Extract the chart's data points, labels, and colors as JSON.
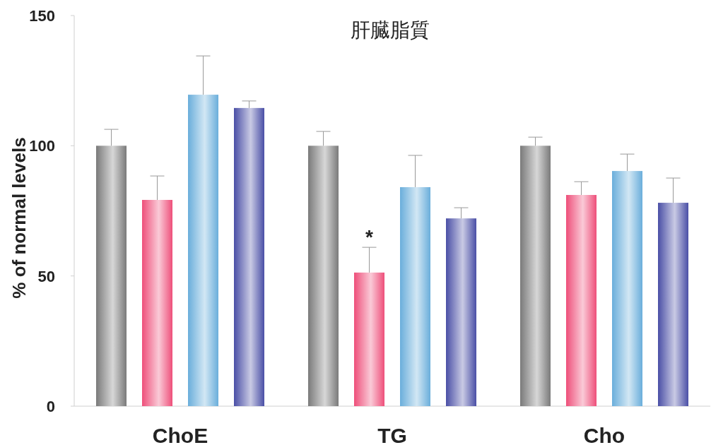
{
  "chart_data": {
    "type": "bar",
    "title": "肝臓脂質",
    "ylabel": "% of normal levels",
    "categories": [
      "ChoE",
      "TG",
      "Cho"
    ],
    "series": [
      {
        "color": "#7a7a7a",
        "values": [
          100,
          100,
          100
        ],
        "errors": [
          [
            100,
            106.3
          ],
          [
            100,
            105.5
          ],
          [
            100,
            103.3
          ]
        ]
      },
      {
        "color": "#ee4f7a",
        "values": [
          79.2,
          51.3,
          81.1
        ],
        "errors": [
          [
            79.2,
            88.4
          ],
          [
            51.3,
            61
          ],
          [
            81.1,
            86.2
          ]
        ]
      },
      {
        "color": "#6aaedb",
        "values": [
          119.6,
          84.1,
          90.3
        ],
        "errors": [
          [
            119.6,
            134.5
          ],
          [
            84.1,
            96.3
          ],
          [
            90.3,
            96.8
          ]
        ]
      },
      {
        "color": "#4a4fa6",
        "values": [
          114.5,
          72.1,
          78.1
        ],
        "errors": [
          [
            114.5,
            117.2
          ],
          [
            72.1,
            76.2
          ],
          [
            78.1,
            87.6
          ]
        ]
      }
    ],
    "ylim": [
      0,
      150
    ],
    "yticks": [
      0,
      50,
      100,
      150
    ],
    "grid": false,
    "annotations": [
      "*"
    ]
  }
}
